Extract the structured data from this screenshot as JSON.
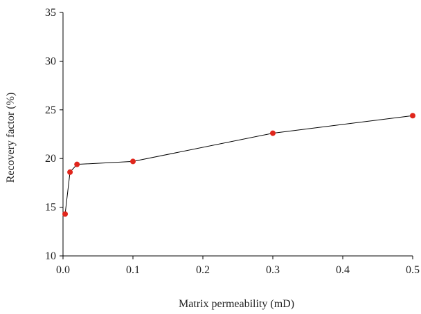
{
  "chart_data": {
    "type": "line",
    "title": "",
    "xlabel": "Matrix permeability (mD)",
    "ylabel": "Recovery factor (%)",
    "xlim": [
      0,
      0.5
    ],
    "ylim": [
      10,
      35
    ],
    "x_ticks": [
      0.0,
      0.1,
      0.2,
      0.3,
      0.4,
      0.5
    ],
    "x_tick_labels": [
      "0.0",
      "0.1",
      "0.2",
      "0.3",
      "0.4",
      "0.5"
    ],
    "y_ticks": [
      10,
      15,
      20,
      25,
      30,
      35
    ],
    "y_tick_labels": [
      "10",
      "15",
      "20",
      "25",
      "30",
      "35"
    ],
    "grid": false,
    "legend": "none",
    "series": [
      {
        "x": [
          0.003,
          0.01,
          0.02,
          0.1,
          0.3,
          0.5
        ],
        "y": [
          14.3,
          18.6,
          19.4,
          19.7,
          22.6,
          24.4
        ],
        "line_color": "#000000",
        "marker_color": "#e0261c"
      }
    ]
  }
}
